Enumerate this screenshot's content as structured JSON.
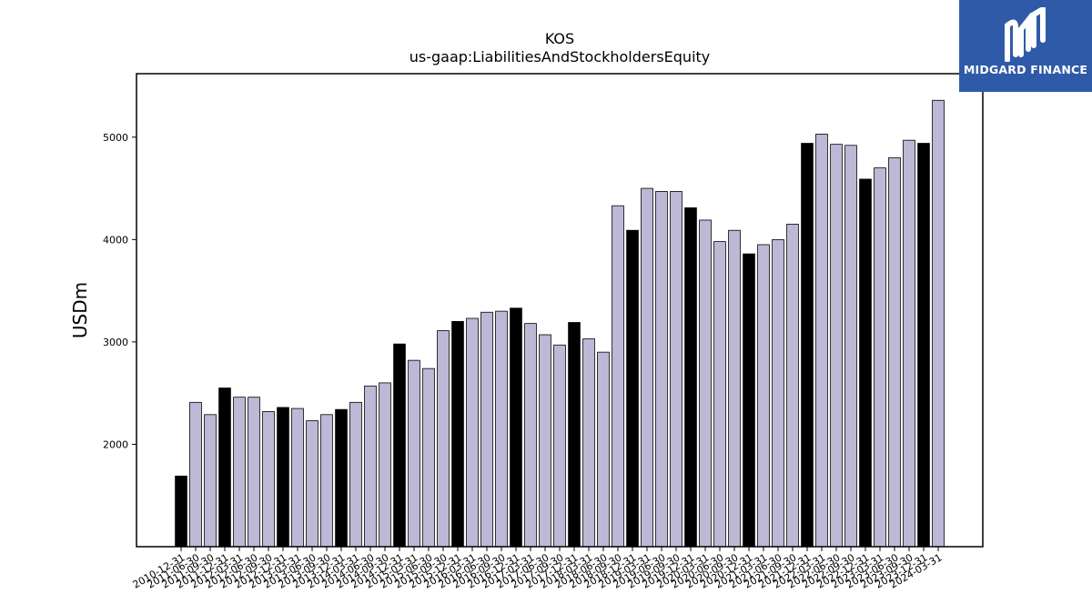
{
  "chart_data": {
    "type": "bar",
    "title": "KOS",
    "subtitle": "us-gaap:LiabilitiesAndStockholdersEquity",
    "xlabel": "",
    "ylabel": "USDm",
    "ylim": [
      1000,
      5620
    ],
    "yticks": [
      2000,
      3000,
      4000,
      5000
    ],
    "grid": false,
    "colors": {
      "annual": "#000000",
      "quarterly": "#bcb8d6",
      "edge": "#000000"
    },
    "categories": [
      "2010-12-31",
      "2011-06-30",
      "2011-09-30",
      "2011-12-31",
      "2012-03-31",
      "2012-06-30",
      "2012-09-30",
      "2012-12-31",
      "2013-03-31",
      "2013-06-30",
      "2013-09-30",
      "2013-12-31",
      "2014-03-31",
      "2014-06-30",
      "2014-09-30",
      "2014-12-31",
      "2015-03-31",
      "2015-06-30",
      "2015-09-30",
      "2015-12-31",
      "2016-03-31",
      "2016-06-30",
      "2016-09-30",
      "2016-12-31",
      "2017-03-31",
      "2017-06-30",
      "2017-09-30",
      "2017-12-31",
      "2018-03-31",
      "2018-06-30",
      "2018-09-30",
      "2018-12-31",
      "2019-03-31",
      "2019-06-30",
      "2019-09-30",
      "2019-12-31",
      "2020-03-31",
      "2020-06-30",
      "2020-09-30",
      "2020-12-31",
      "2021-03-31",
      "2021-06-30",
      "2021-09-30",
      "2021-12-31",
      "2022-03-31",
      "2022-06-30",
      "2022-09-30",
      "2022-12-31",
      "2023-03-31",
      "2023-06-30",
      "2023-09-30",
      "2023-12-31",
      "2024-03-31"
    ],
    "visible_tick_labels": [
      "2010-12-31",
      "2011-06-30",
      "2011-09-30",
      "2011-12-31",
      "2012-03-31",
      "2012-06-30",
      "2012-09-30",
      "2012-12-31",
      "2013-03-31",
      "2013-06-30",
      "2013-09-30",
      "2013-12-31",
      "2014-03-31",
      "2014-06-30",
      "2014-09-30",
      "2014-12-31",
      "2015-03-31",
      "2015-06-30",
      "2015-09-30",
      "2015-12-31",
      "2016-03-31",
      "2016-06-30",
      "2016-09-30",
      "2016-12-31",
      "2017-03-31",
      "2017-06-30",
      "2017-09-30",
      "2017-12-31",
      "2018-03-31",
      "2018-06-30",
      "2018-09-30",
      "2018-12-31",
      "2019-03-31",
      "2019-06-30",
      "2019-09-30",
      "2019-12-31",
      "2020-03-31",
      "2020-06-30",
      "2020-09-30",
      "2020-12-31",
      "2021-03-31",
      "2021-06-30",
      "2021-09-30",
      "2021-12-31",
      "2022-03-31",
      "2022-06-30",
      "2022-09-30",
      "2022-12-31",
      "2023-03-31",
      "2023-06-30",
      "2023-09-30",
      "2023-12-31",
      "2024-03-31"
    ],
    "values": [
      1690,
      2410,
      2290,
      2550,
      2460,
      2460,
      2320,
      2360,
      2350,
      2230,
      2290,
      2340,
      2410,
      2570,
      2600,
      2980,
      2820,
      2740,
      3110,
      3200,
      3230,
      3290,
      3300,
      3330,
      3180,
      3070,
      2970,
      3190,
      3030,
      2900,
      4330,
      4090,
      4500,
      4470,
      4470,
      4310,
      4190,
      3980,
      4090,
      3860,
      3950,
      4000,
      4150,
      4940,
      5030,
      4930,
      4920,
      4590,
      4700,
      4800,
      4970,
      4940,
      5360
    ],
    "annual_flags": [
      true,
      false,
      false,
      true,
      false,
      false,
      false,
      true,
      false,
      false,
      false,
      true,
      false,
      false,
      false,
      true,
      false,
      false,
      false,
      true,
      false,
      false,
      false,
      true,
      false,
      false,
      false,
      true,
      false,
      false,
      false,
      true,
      false,
      false,
      false,
      true,
      false,
      false,
      false,
      true,
      false,
      false,
      false,
      true,
      false,
      false,
      false,
      true,
      false,
      false,
      false,
      true,
      false
    ]
  },
  "logo": {
    "text": "MIDGARD FINANCE",
    "icon": "midgard-logo-icon"
  }
}
